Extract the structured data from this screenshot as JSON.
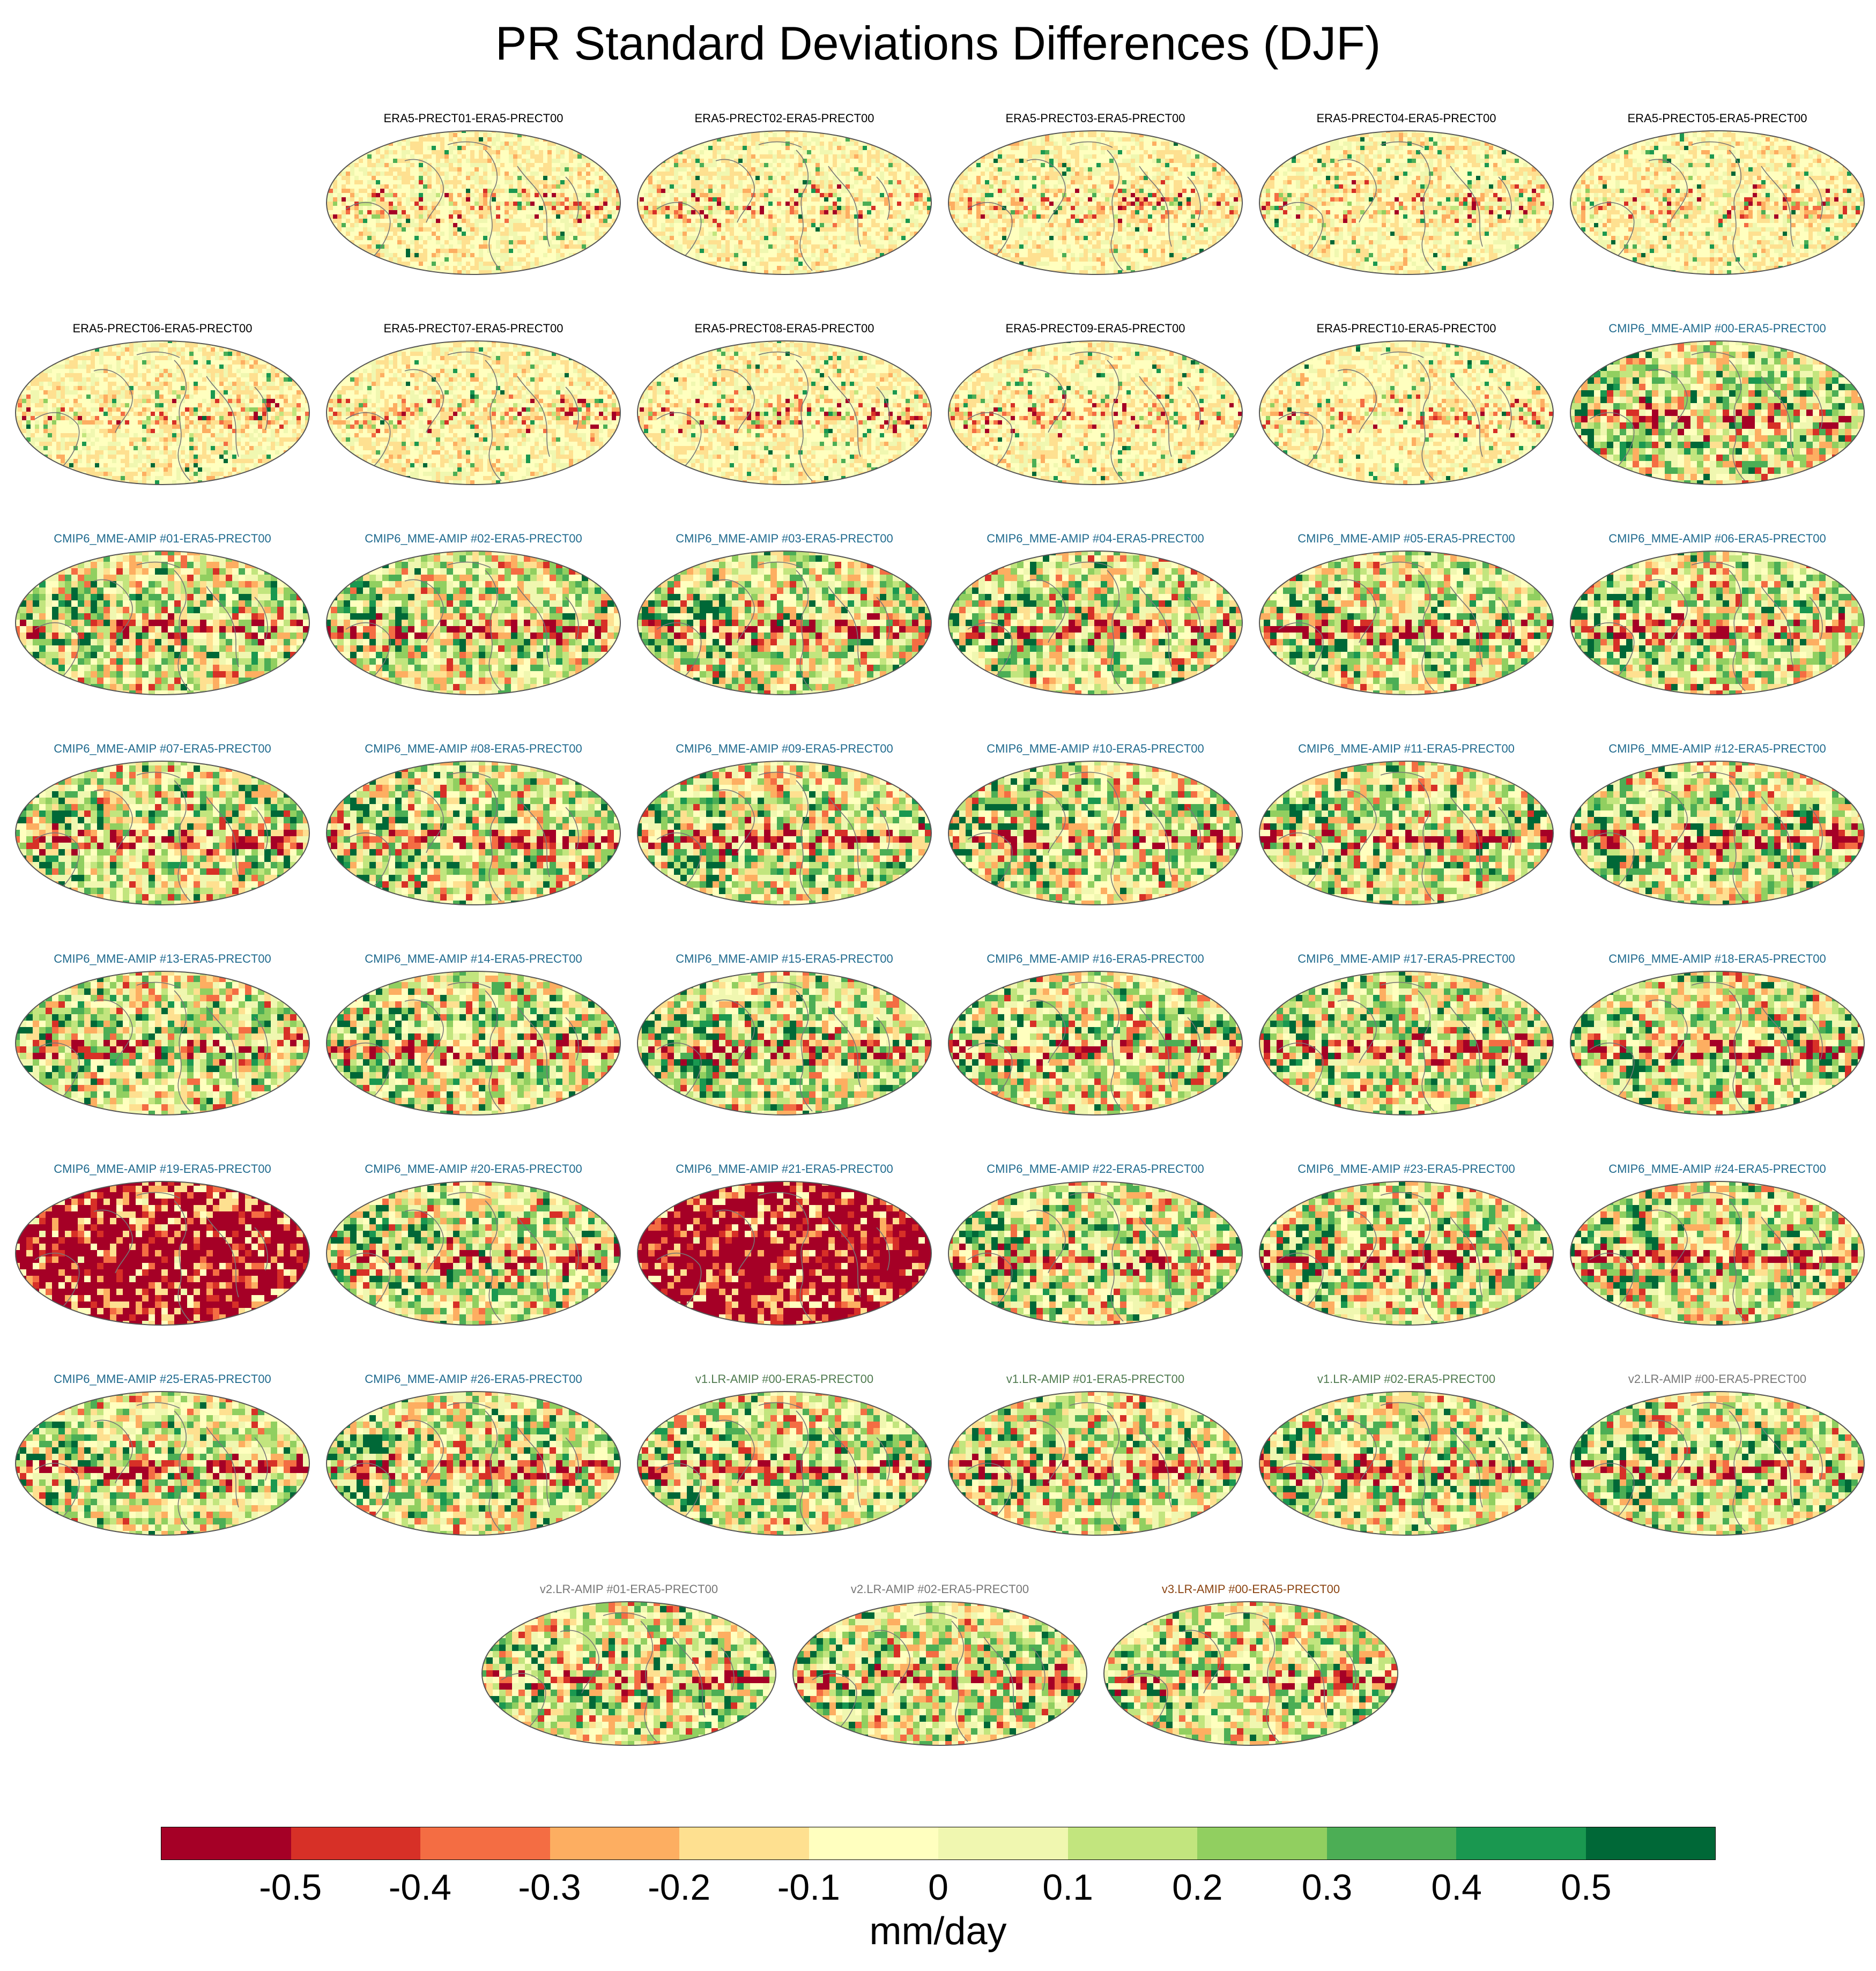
{
  "title": "PR Standard Deviations Differences (DJF)",
  "colorbar": {
    "units": "mm/day",
    "colors": [
      "#a50026",
      "#d73027",
      "#f46d43",
      "#fdae61",
      "#fee090",
      "#ffffbf",
      "#f0f7b0",
      "#c2e57e",
      "#91cf60",
      "#4cae55",
      "#1a9850",
      "#006837"
    ],
    "ticks": [
      "-0.5",
      "-0.4",
      "-0.3",
      "-0.2",
      "-0.1",
      "0",
      "0.1",
      "0.2",
      "0.3",
      "0.4",
      "0.5"
    ]
  },
  "label_colors": {
    "era5": "#000000",
    "cmip6": "#1f6a8e",
    "v1": "#4f7a4f",
    "v2": "#777777",
    "v3": "#8b4513"
  },
  "panels": [
    {
      "label": "ERA5-PRECT01-ERA5-PRECT00",
      "group": "era5",
      "pattern": "era5"
    },
    {
      "label": "ERA5-PRECT02-ERA5-PRECT00",
      "group": "era5",
      "pattern": "era5"
    },
    {
      "label": "ERA5-PRECT03-ERA5-PRECT00",
      "group": "era5",
      "pattern": "era5"
    },
    {
      "label": "ERA5-PRECT04-ERA5-PRECT00",
      "group": "era5",
      "pattern": "era5"
    },
    {
      "label": "ERA5-PRECT05-ERA5-PRECT00",
      "group": "era5",
      "pattern": "era5"
    },
    {
      "label": "ERA5-PRECT06-ERA5-PRECT00",
      "group": "era5",
      "pattern": "era5"
    },
    {
      "label": "ERA5-PRECT07-ERA5-PRECT00",
      "group": "era5",
      "pattern": "era5"
    },
    {
      "label": "ERA5-PRECT08-ERA5-PRECT00",
      "group": "era5",
      "pattern": "era5"
    },
    {
      "label": "ERA5-PRECT09-ERA5-PRECT00",
      "group": "era5",
      "pattern": "era5"
    },
    {
      "label": "ERA5-PRECT10-ERA5-PRECT00",
      "group": "era5",
      "pattern": "era5"
    },
    {
      "label": "CMIP6_MME-AMIP  #00-ERA5-PRECT00",
      "group": "cmip6",
      "pattern": "model"
    },
    {
      "label": "CMIP6_MME-AMIP  #01-ERA5-PRECT00",
      "group": "cmip6",
      "pattern": "model"
    },
    {
      "label": "CMIP6_MME-AMIP  #02-ERA5-PRECT00",
      "group": "cmip6",
      "pattern": "model"
    },
    {
      "label": "CMIP6_MME-AMIP  #03-ERA5-PRECT00",
      "group": "cmip6",
      "pattern": "model"
    },
    {
      "label": "CMIP6_MME-AMIP  #04-ERA5-PRECT00",
      "group": "cmip6",
      "pattern": "model"
    },
    {
      "label": "CMIP6_MME-AMIP  #05-ERA5-PRECT00",
      "group": "cmip6",
      "pattern": "model"
    },
    {
      "label": "CMIP6_MME-AMIP  #06-ERA5-PRECT00",
      "group": "cmip6",
      "pattern": "model"
    },
    {
      "label": "CMIP6_MME-AMIP  #07-ERA5-PRECT00",
      "group": "cmip6",
      "pattern": "model"
    },
    {
      "label": "CMIP6_MME-AMIP  #08-ERA5-PRECT00",
      "group": "cmip6",
      "pattern": "model"
    },
    {
      "label": "CMIP6_MME-AMIP  #09-ERA5-PRECT00",
      "group": "cmip6",
      "pattern": "model"
    },
    {
      "label": "CMIP6_MME-AMIP  #10-ERA5-PRECT00",
      "group": "cmip6",
      "pattern": "model"
    },
    {
      "label": "CMIP6_MME-AMIP  #11-ERA5-PRECT00",
      "group": "cmip6",
      "pattern": "model"
    },
    {
      "label": "CMIP6_MME-AMIP  #12-ERA5-PRECT00",
      "group": "cmip6",
      "pattern": "model"
    },
    {
      "label": "CMIP6_MME-AMIP  #13-ERA5-PRECT00",
      "group": "cmip6",
      "pattern": "model"
    },
    {
      "label": "CMIP6_MME-AMIP  #14-ERA5-PRECT00",
      "group": "cmip6",
      "pattern": "model"
    },
    {
      "label": "CMIP6_MME-AMIP  #15-ERA5-PRECT00",
      "group": "cmip6",
      "pattern": "model"
    },
    {
      "label": "CMIP6_MME-AMIP  #16-ERA5-PRECT00",
      "group": "cmip6",
      "pattern": "model"
    },
    {
      "label": "CMIP6_MME-AMIP  #17-ERA5-PRECT00",
      "group": "cmip6",
      "pattern": "model"
    },
    {
      "label": "CMIP6_MME-AMIP  #18-ERA5-PRECT00",
      "group": "cmip6",
      "pattern": "model"
    },
    {
      "label": "CMIP6_MME-AMIP  #19-ERA5-PRECT00",
      "group": "cmip6",
      "pattern": "allred"
    },
    {
      "label": "CMIP6_MME-AMIP  #20-ERA5-PRECT00",
      "group": "cmip6",
      "pattern": "model"
    },
    {
      "label": "CMIP6_MME-AMIP  #21-ERA5-PRECT00",
      "group": "cmip6",
      "pattern": "allred"
    },
    {
      "label": "CMIP6_MME-AMIP  #22-ERA5-PRECT00",
      "group": "cmip6",
      "pattern": "model"
    },
    {
      "label": "CMIP6_MME-AMIP  #23-ERA5-PRECT00",
      "group": "cmip6",
      "pattern": "model"
    },
    {
      "label": "CMIP6_MME-AMIP  #24-ERA5-PRECT00",
      "group": "cmip6",
      "pattern": "model"
    },
    {
      "label": "CMIP6_MME-AMIP  #25-ERA5-PRECT00",
      "group": "cmip6",
      "pattern": "model"
    },
    {
      "label": "CMIP6_MME-AMIP  #26-ERA5-PRECT00",
      "group": "cmip6",
      "pattern": "model"
    },
    {
      "label": "v1.LR-AMIP  #00-ERA5-PRECT00",
      "group": "v1",
      "pattern": "model"
    },
    {
      "label": "v1.LR-AMIP  #01-ERA5-PRECT00",
      "group": "v1",
      "pattern": "model"
    },
    {
      "label": "v1.LR-AMIP  #02-ERA5-PRECT00",
      "group": "v1",
      "pattern": "model"
    },
    {
      "label": "v2.LR-AMIP  #00-ERA5-PRECT00",
      "group": "v2",
      "pattern": "model"
    },
    {
      "label": "v2.LR-AMIP  #01-ERA5-PRECT00",
      "group": "v2",
      "pattern": "model"
    },
    {
      "label": "v2.LR-AMIP  #02-ERA5-PRECT00",
      "group": "v2",
      "pattern": "model"
    },
    {
      "label": "v3.LR-AMIP  #00-ERA5-PRECT00",
      "group": "v3",
      "pattern": "model"
    }
  ]
}
